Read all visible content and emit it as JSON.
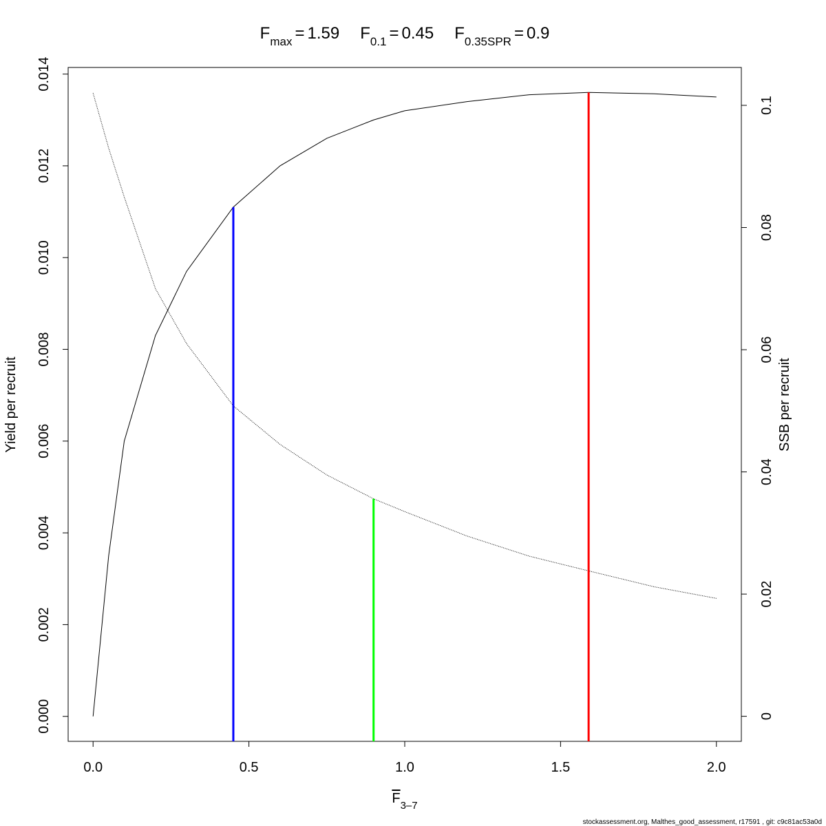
{
  "chart_data": {
    "type": "line",
    "equals": "=",
    "ref_lines": [
      {
        "symbol": "F",
        "subscript": "max",
        "x": 1.59,
        "top": 0.0136,
        "color": "#ff0000"
      },
      {
        "symbol": "F",
        "subscript": "0.1",
        "x": 0.45,
        "top": 0.0111,
        "color": "#0000ff"
      },
      {
        "symbol": "F",
        "subscript": "0.35SPR",
        "x": 0.9,
        "top": 0.0356,
        "axis": "y2",
        "color": "#00ff00"
      }
    ],
    "xlabel": {
      "symbol": "F",
      "subscript": "3–7"
    },
    "ylabel": "Yield per recruit",
    "y2label": "SSB per recruit",
    "footer": "stockassessment.org, Malthes_good_assessment, r17591 , git: c9c81ac53a0d",
    "x": [
      0,
      0.05,
      0.1,
      0.2,
      0.3,
      0.45,
      0.6,
      0.75,
      0.9,
      1.0,
      1.2,
      1.4,
      1.59,
      1.8,
      2.0
    ],
    "series": [
      {
        "color": "#000000",
        "line_style": "solid",
        "values": [
          0,
          0.0035,
          0.006,
          0.0083,
          0.0097,
          0.0111,
          0.012,
          0.0126,
          0.013,
          0.0132,
          0.0134,
          0.01355,
          0.0136,
          0.01357,
          0.0135
        ]
      },
      {
        "color": "#000000",
        "line_style": "dotted",
        "axis": "y2",
        "values": [
          0.102,
          0.093,
          0.085,
          0.07,
          0.061,
          0.0508,
          0.0445,
          0.0395,
          0.0356,
          0.0335,
          0.0295,
          0.0262,
          0.0238,
          0.0212,
          0.0193
        ]
      }
    ],
    "xlim": [
      -0.08,
      2.08
    ],
    "xticks": [
      {
        "value": 0,
        "label": "0.0"
      },
      0.5,
      {
        "value": 1,
        "label": "1.0"
      },
      1.5,
      {
        "value": 2,
        "label": "2.0"
      }
    ],
    "ylim": [
      -0.000544,
      0.014144
    ],
    "yticks": [
      {
        "value": 0,
        "label": "0.000"
      },
      {
        "value": 0.002,
        "label": "0.002"
      },
      {
        "value": 0.004,
        "label": "0.004"
      },
      {
        "value": 0.006,
        "label": "0.006"
      },
      {
        "value": 0.008,
        "label": "0.008"
      },
      {
        "value": 0.01,
        "label": "0.010"
      },
      {
        "value": 0.012,
        "label": "0.012"
      },
      {
        "value": 0.014,
        "label": "0.014"
      }
    ],
    "y2lim": [
      -0.0041,
      0.1062
    ],
    "y2ticks": [
      0,
      0.02,
      0.04,
      0.06,
      0.08,
      0.1
    ]
  }
}
